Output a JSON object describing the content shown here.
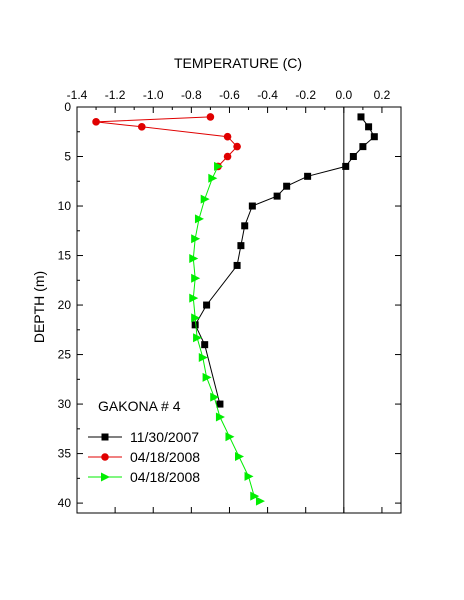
{
  "chart_data": {
    "type": "line",
    "title": "",
    "xlabel": "TEMPERATURE (C)",
    "ylabel": "DEPTH (m)",
    "x_axis_position": "top",
    "y_axis_inverted": true,
    "xlim": [
      -1.4,
      0.3
    ],
    "ylim": [
      0,
      41
    ],
    "x_ticks": [
      -1.4,
      -1.2,
      -1.0,
      -0.8,
      -0.6,
      -0.4,
      -0.2,
      0.0,
      0.2
    ],
    "x_tick_labels": [
      "-1.4",
      "-1.2",
      "-1.0",
      "-0.8",
      "-0.6",
      "-0.4",
      "-0.2",
      "0.0",
      "0.2"
    ],
    "y_ticks": [
      0,
      5,
      10,
      15,
      20,
      25,
      30,
      35,
      40
    ],
    "y_tick_labels": [
      "0",
      "5",
      "10",
      "15",
      "20",
      "25",
      "30",
      "35",
      "40"
    ],
    "grid": false,
    "reference_line_x": 0.0,
    "annotation": "GAKONA # 4",
    "legend_position": "bottom-left",
    "series": [
      {
        "name": "11/30/2007",
        "marker": "square",
        "color": "#000000",
        "points": [
          [
            0.09,
            1
          ],
          [
            0.13,
            2
          ],
          [
            0.16,
            3
          ],
          [
            0.1,
            4
          ],
          [
            0.05,
            5
          ],
          [
            0.01,
            6
          ],
          [
            -0.19,
            7
          ],
          [
            -0.3,
            8
          ],
          [
            -0.35,
            9
          ],
          [
            -0.48,
            10
          ],
          [
            -0.52,
            12
          ],
          [
            -0.54,
            14
          ],
          [
            -0.56,
            16
          ],
          [
            -0.72,
            20
          ],
          [
            -0.78,
            22
          ],
          [
            -0.73,
            24
          ],
          [
            -0.65,
            30
          ]
        ]
      },
      {
        "name": "04/18/2008",
        "marker": "circle",
        "color": "#e00000",
        "points": [
          [
            -0.7,
            1
          ],
          [
            -1.3,
            1.5
          ],
          [
            -1.06,
            2
          ],
          [
            -0.61,
            3
          ],
          [
            -0.56,
            4
          ],
          [
            -0.61,
            5
          ],
          [
            -0.66,
            6
          ]
        ]
      },
      {
        "name": "04/18/2008",
        "marker": "triangle-right",
        "color": "#00ee00",
        "points": [
          [
            -0.66,
            6
          ],
          [
            -0.69,
            7.2
          ],
          [
            -0.73,
            9.3
          ],
          [
            -0.76,
            11.3
          ],
          [
            -0.78,
            13.3
          ],
          [
            -0.79,
            15.3
          ],
          [
            -0.78,
            17.3
          ],
          [
            -0.79,
            19.3
          ],
          [
            -0.78,
            21.3
          ],
          [
            -0.77,
            23.3
          ],
          [
            -0.74,
            25.3
          ],
          [
            -0.72,
            27.3
          ],
          [
            -0.68,
            29.3
          ],
          [
            -0.65,
            31.3
          ],
          [
            -0.6,
            33.3
          ],
          [
            -0.55,
            35.3
          ],
          [
            -0.5,
            37.3
          ],
          [
            -0.47,
            39.3
          ],
          [
            -0.44,
            39.8
          ]
        ]
      }
    ]
  }
}
